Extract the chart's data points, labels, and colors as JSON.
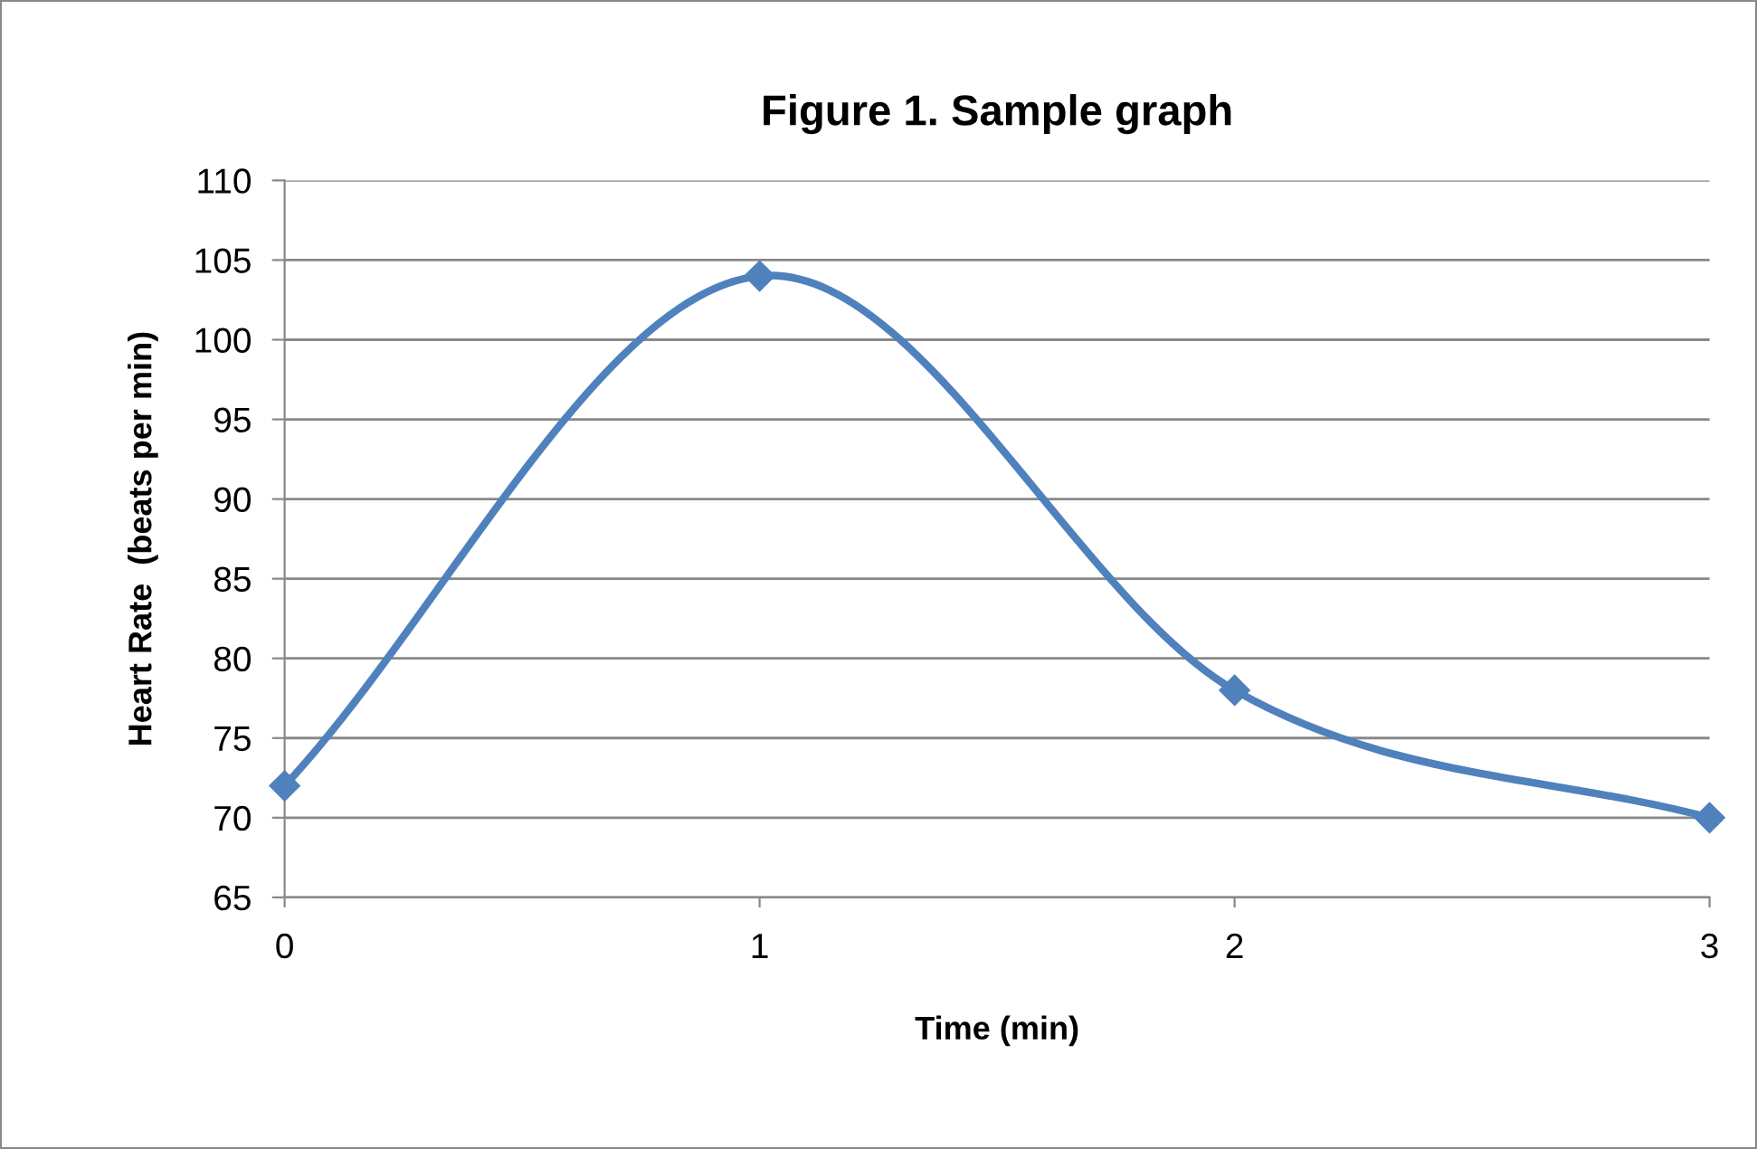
{
  "chart_data": {
    "type": "line",
    "title": "Figure 1. Sample graph",
    "xlabel": "Time (min)",
    "ylabel": "Heart Rate  (beats per min)",
    "x": [
      0,
      1,
      2,
      3
    ],
    "series": [
      {
        "color": "#4f81bd",
        "values": [
          72,
          104,
          78,
          70
        ]
      }
    ],
    "xlim": [
      0,
      3
    ],
    "xticks": [
      0,
      1,
      2,
      3
    ],
    "ylim": [
      65,
      110
    ],
    "yticks": [
      65,
      70,
      75,
      80,
      85,
      90,
      95,
      100,
      105,
      110
    ],
    "grid": "y",
    "legend": false,
    "marker": "diamond",
    "line_style": "solid"
  }
}
